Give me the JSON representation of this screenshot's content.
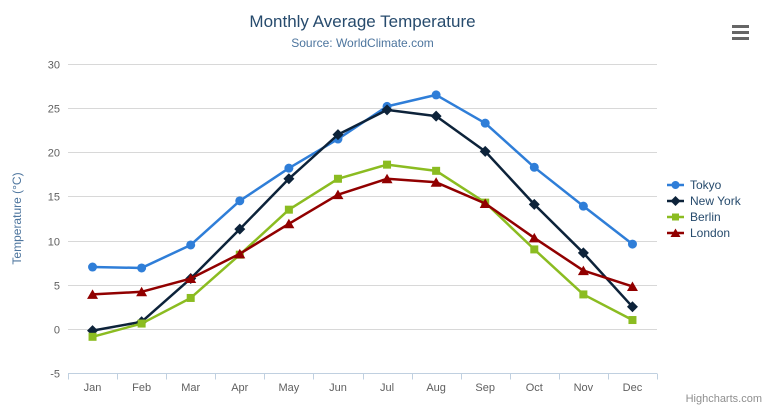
{
  "chart": {
    "title": "Monthly Average Temperature",
    "subtitle": "Source: WorldClimate.com",
    "credits": "Highcharts.com",
    "context_menu_icon": "hamburger-bars",
    "colors": {
      "title_text": "#274b6d",
      "subtitle_text": "#4d759e",
      "axis_title": "#4d759e",
      "axis_label": "#606060",
      "legend_text": "#274b6d",
      "grid_line": "#d8d8d8",
      "axis_line": "#c0d0e0",
      "credits_text": "#8f8f8f",
      "menu_icon": "#666666",
      "background": "#ffffff"
    }
  },
  "chart_data": {
    "type": "line",
    "title": "Monthly Average Temperature",
    "subtitle": "Source: WorldClimate.com",
    "xlabel": "",
    "ylabel": "Temperature (°C)",
    "categories": [
      "Jan",
      "Feb",
      "Mar",
      "Apr",
      "May",
      "Jun",
      "Jul",
      "Aug",
      "Sep",
      "Oct",
      "Nov",
      "Dec"
    ],
    "ylim": [
      -5,
      30
    ],
    "yticks": [
      -5,
      0,
      5,
      10,
      15,
      20,
      25,
      30
    ],
    "grid": true,
    "legend_position": "right",
    "series": [
      {
        "name": "Tokyo",
        "color": "#2f7ed8",
        "marker": "circle",
        "values": [
          7.0,
          6.9,
          9.5,
          14.5,
          18.2,
          21.5,
          25.2,
          26.5,
          23.3,
          18.3,
          13.9,
          9.6
        ]
      },
      {
        "name": "New York",
        "color": "#0d233a",
        "marker": "diamond",
        "values": [
          -0.2,
          0.8,
          5.7,
          11.3,
          17.0,
          22.0,
          24.8,
          24.1,
          20.1,
          14.1,
          8.6,
          2.5
        ]
      },
      {
        "name": "Berlin",
        "color": "#8bbc21",
        "marker": "square",
        "values": [
          -0.9,
          0.6,
          3.5,
          8.4,
          13.5,
          17.0,
          18.6,
          17.9,
          14.3,
          9.0,
          3.9,
          1.0
        ]
      },
      {
        "name": "London",
        "color": "#910000",
        "marker": "triangle",
        "values": [
          3.9,
          4.2,
          5.7,
          8.5,
          11.9,
          15.2,
          17.0,
          16.6,
          14.2,
          10.3,
          6.6,
          4.8
        ]
      }
    ]
  }
}
